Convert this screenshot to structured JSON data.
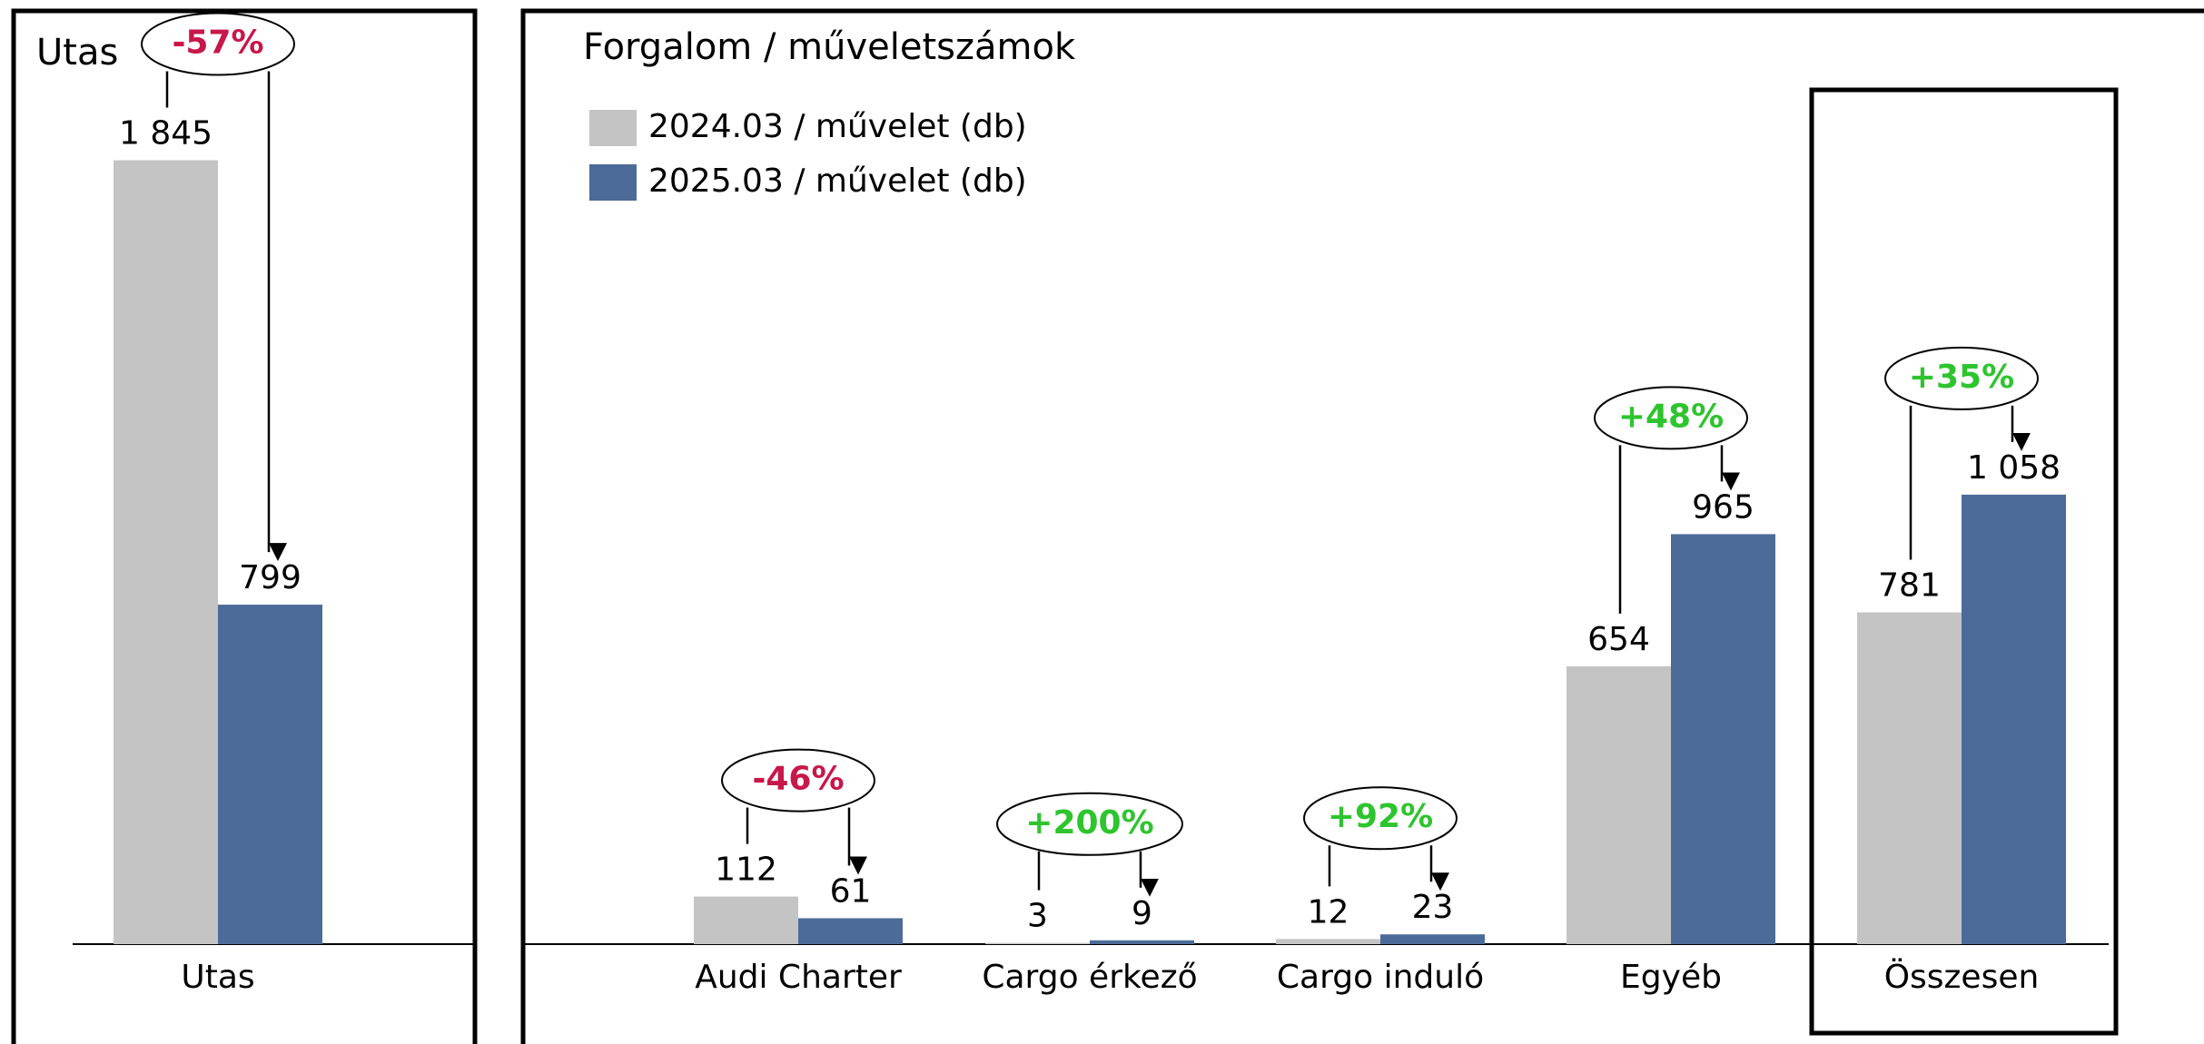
{
  "chart_data": [
    {
      "type": "bar",
      "title": "Utas",
      "categories": [
        "Utas"
      ],
      "series": [
        {
          "color": "#c4c4c4",
          "values": [
            1845
          ],
          "value_labels": [
            "1 845"
          ]
        },
        {
          "color": "#4c6b99",
          "values": [
            799
          ],
          "value_labels": [
            "799"
          ]
        }
      ],
      "changes": [
        -57
      ],
      "change_labels": [
        "-57%"
      ],
      "ylim": [
        0,
        2000
      ]
    },
    {
      "type": "bar",
      "title": "Forgalom / műveletszámok",
      "categories": [
        "Audi Charter",
        "Cargo érkező",
        "Cargo induló",
        "Egyéb",
        "Összesen"
      ],
      "series": [
        {
          "name": "2024.03 / művelet (db)",
          "color": "#c4c4c4",
          "values": [
            112,
            3,
            12,
            654,
            781
          ],
          "value_labels": [
            "112",
            "3",
            "12",
            "654",
            "781"
          ]
        },
        {
          "name": "2025.03 / művelet (db)",
          "color": "#4c6b99",
          "values": [
            61,
            9,
            23,
            965,
            1058
          ],
          "value_labels": [
            "61",
            "9",
            "23",
            "965",
            "1 058"
          ]
        }
      ],
      "changes": [
        -46,
        200,
        92,
        48,
        35
      ],
      "change_labels": [
        "-46%",
        "+200%",
        "+92%",
        "+48%",
        "+35%"
      ],
      "ylim": [
        0,
        2000
      ]
    }
  ]
}
